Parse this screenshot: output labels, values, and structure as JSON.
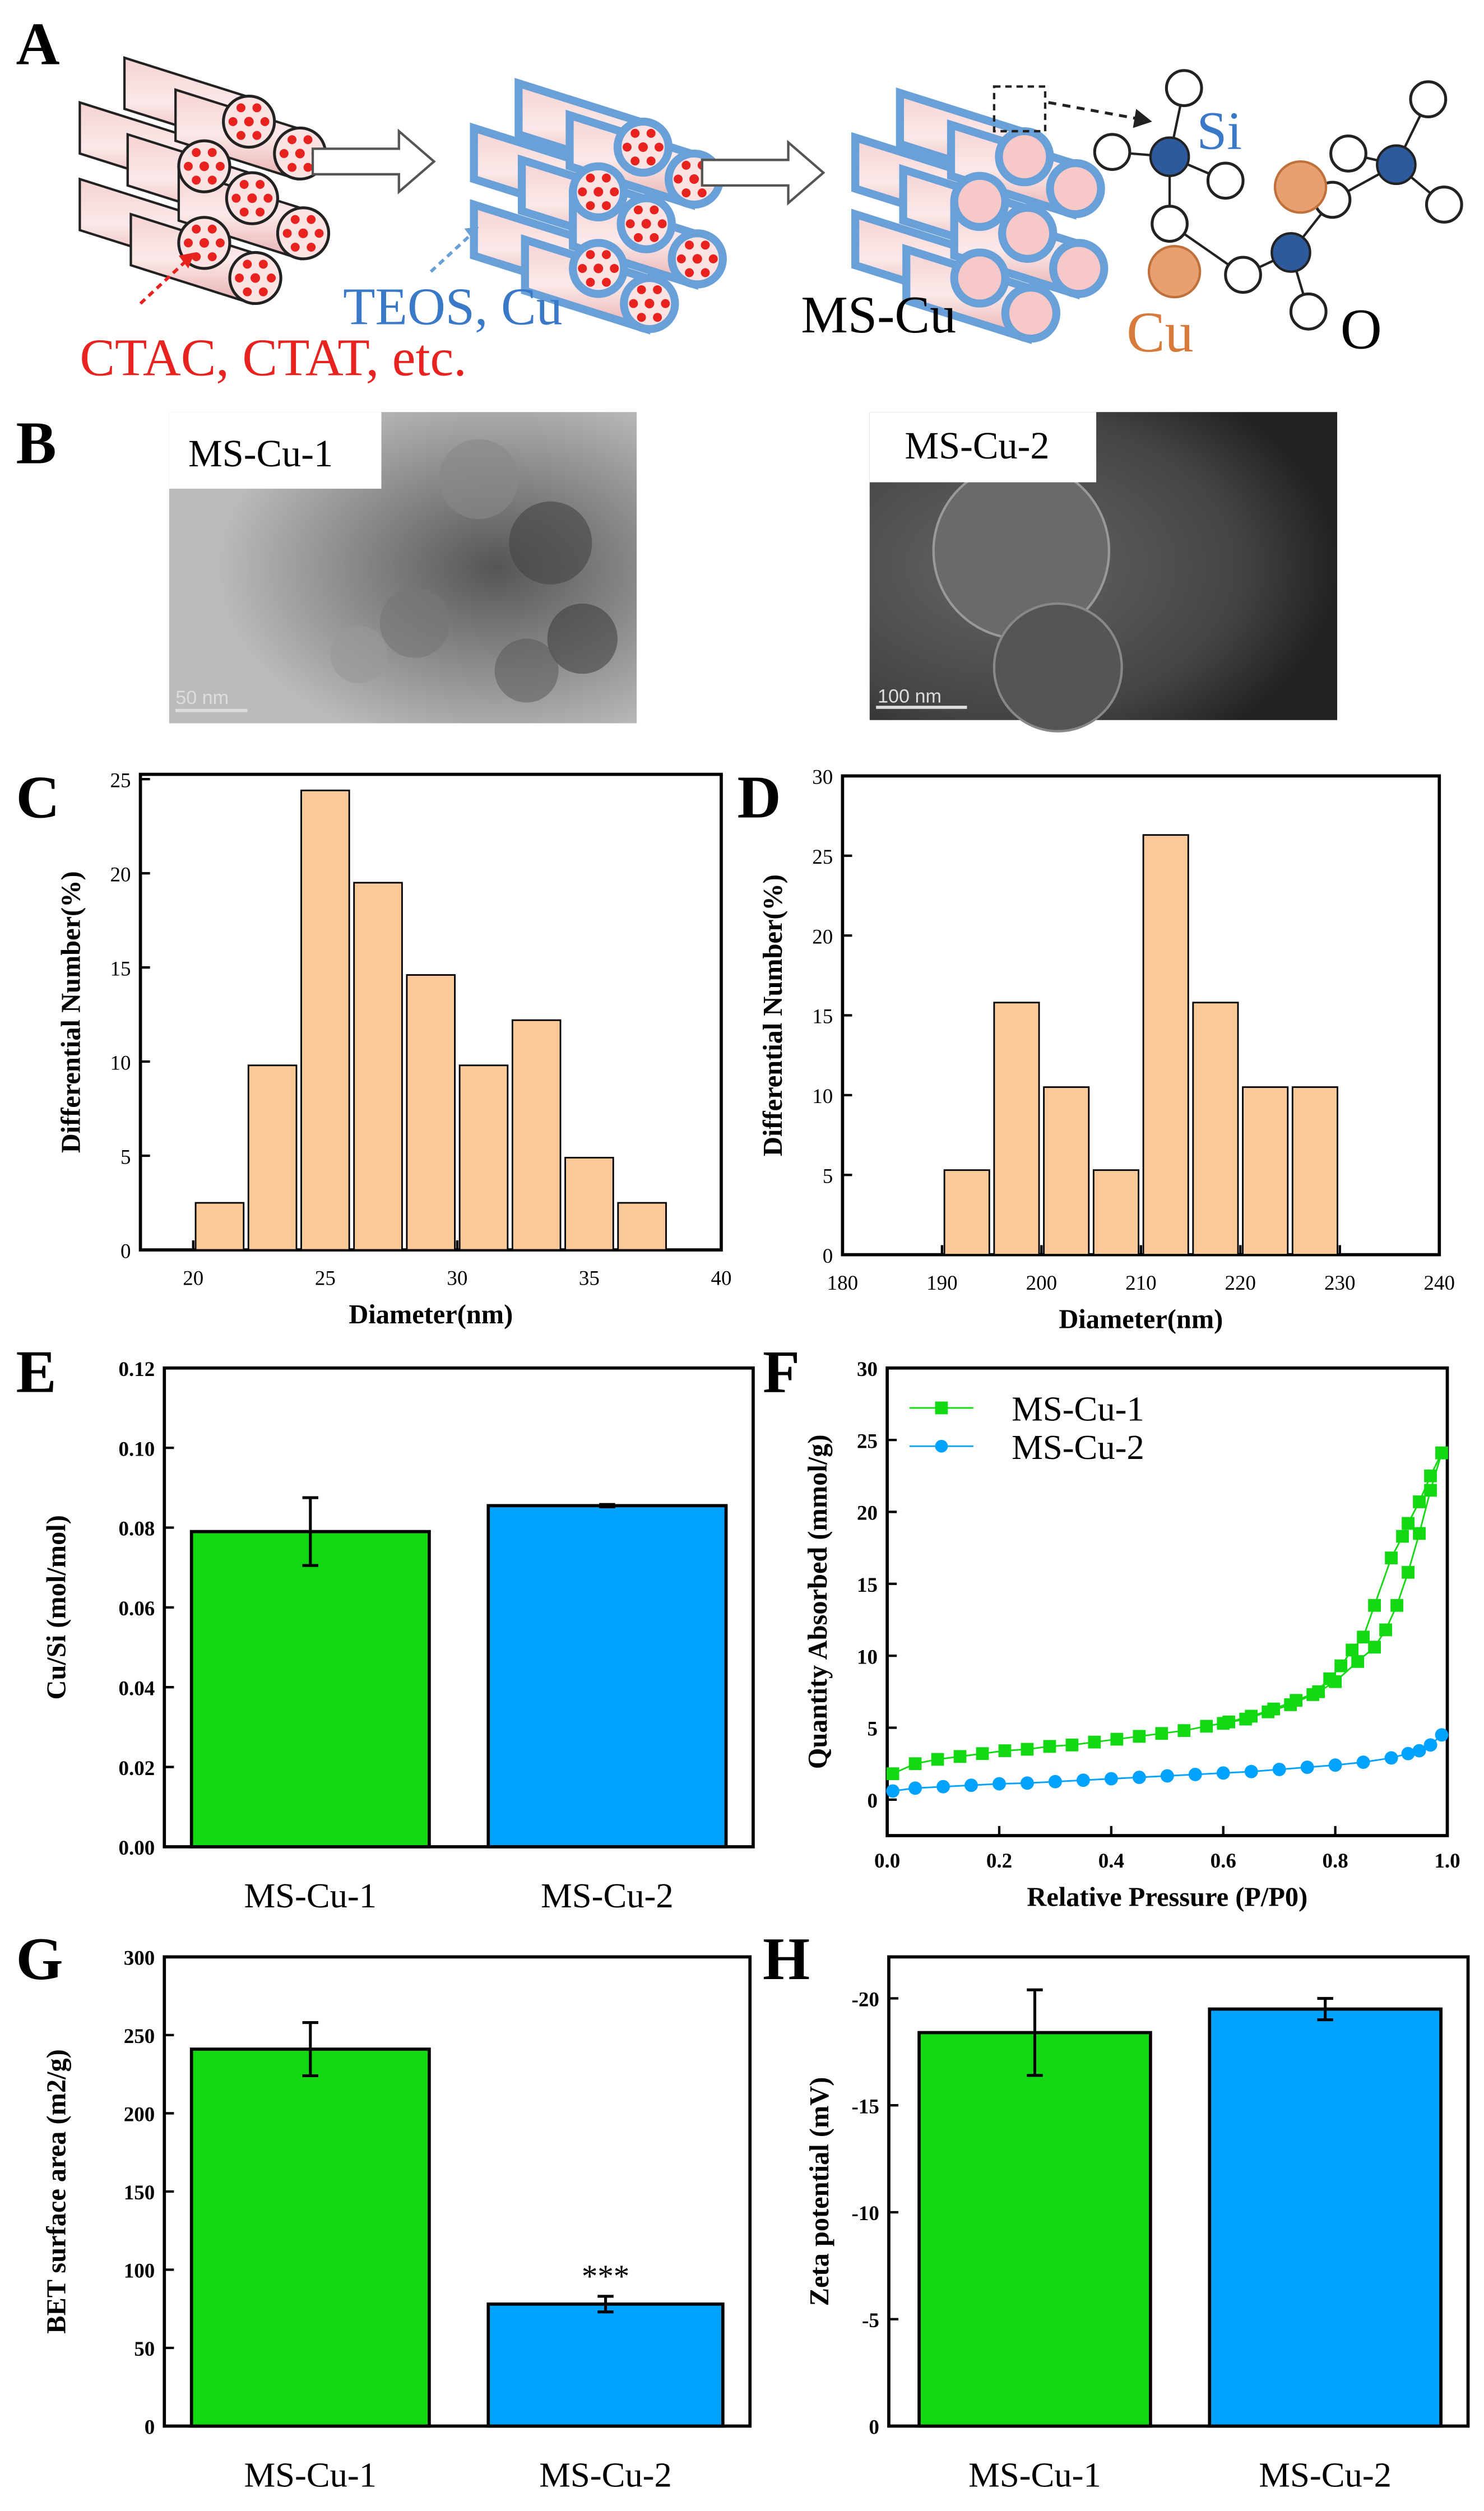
{
  "panel_letters": {
    "A": "A",
    "B": "B",
    "C": "C",
    "D": "D",
    "E": "E",
    "F": "F",
    "G": "G",
    "H": "H"
  },
  "schematic": {
    "surfactant_label": "CTAC, CTAT, etc.",
    "precursor_label": "TEOS, Cu",
    "product_label": "MS-Cu",
    "si_label": "Si",
    "cu_label": "Cu",
    "o_label": "O",
    "colors": {
      "surfactant": "#e8231f",
      "precursor": "#3a78c8",
      "si": "#2d5a9c",
      "cu": "#e8a070"
    }
  },
  "tem": [
    {
      "label": "MS-Cu-1",
      "scale": "50 nm"
    },
    {
      "label": "MS-Cu-2",
      "scale": "100 nm"
    }
  ],
  "colors": {
    "green": "#13d913",
    "blue": "#00a2ff",
    "hist": "#f9c99a"
  },
  "chart_data": [
    {
      "id": "C",
      "type": "bar",
      "xlabel": "Diameter(nm)",
      "ylabel": "Differential Number(%)",
      "xlim": [
        18,
        40
      ],
      "ylim": [
        0,
        25
      ],
      "xticks": [
        20,
        25,
        30,
        35,
        40
      ],
      "yticks": [
        0,
        5,
        10,
        15,
        20,
        25
      ],
      "bin_width": 2,
      "x": [
        21,
        23,
        25,
        27,
        29,
        31,
        33,
        35,
        37
      ],
      "values": [
        2.5,
        9.8,
        24.4,
        19.5,
        14.6,
        9.8,
        12.2,
        4.9,
        2.5
      ]
    },
    {
      "id": "D",
      "type": "bar",
      "xlabel": "Diameter(nm)",
      "ylabel": "Differential Number(%)",
      "xlim": [
        180,
        240
      ],
      "ylim": [
        0,
        30
      ],
      "xticks": [
        180,
        190,
        200,
        210,
        220,
        230,
        240
      ],
      "yticks": [
        0,
        5,
        10,
        15,
        20,
        25,
        30
      ],
      "bin_width": 5,
      "x": [
        192.5,
        197.5,
        202.5,
        207.5,
        212.5,
        217.5,
        222.5,
        227.5
      ],
      "values": [
        5.3,
        15.8,
        10.5,
        5.3,
        26.3,
        15.8,
        10.5,
        10.5
      ]
    },
    {
      "id": "E",
      "type": "bar",
      "ylabel": "Cu/Si (mol/mol)",
      "ylim": [
        0,
        0.12
      ],
      "yticks": [
        "0.00",
        "0.02",
        "0.04",
        "0.06",
        "0.08",
        "0.10",
        "0.12"
      ],
      "categories": [
        "MS-Cu-1",
        "MS-Cu-2"
      ],
      "values": [
        0.079,
        0.0855
      ],
      "errors": [
        0.0085,
        0.0003
      ]
    },
    {
      "id": "F",
      "type": "line",
      "xlabel": "Relative Pressure (P/P0)",
      "ylabel": "Quantity Absorbed (mmol/g)",
      "xlim": [
        0,
        1
      ],
      "ylim": [
        -2.5,
        30
      ],
      "xticks": [
        "0.0",
        "0.2",
        "0.4",
        "0.6",
        "0.8",
        "1.0"
      ],
      "yticks": [
        0,
        5,
        10,
        15,
        20,
        25,
        30
      ],
      "legend": "top-left",
      "series": [
        {
          "name": "MS-Cu-1",
          "marker": "square",
          "adsorption": [
            [
              0.01,
              1.8
            ],
            [
              0.05,
              2.5
            ],
            [
              0.09,
              2.8
            ],
            [
              0.13,
              3.0
            ],
            [
              0.17,
              3.2
            ],
            [
              0.21,
              3.4
            ],
            [
              0.25,
              3.5
            ],
            [
              0.29,
              3.7
            ],
            [
              0.33,
              3.8
            ],
            [
              0.37,
              4.0
            ],
            [
              0.41,
              4.2
            ],
            [
              0.45,
              4.4
            ],
            [
              0.49,
              4.6
            ],
            [
              0.53,
              4.8
            ],
            [
              0.57,
              5.1
            ],
            [
              0.61,
              5.4
            ],
            [
              0.65,
              5.8
            ],
            [
              0.69,
              6.3
            ],
            [
              0.73,
              6.9
            ],
            [
              0.77,
              7.5
            ],
            [
              0.8,
              8.2
            ],
            [
              0.84,
              9.6
            ],
            [
              0.87,
              10.6
            ],
            [
              0.89,
              11.8
            ],
            [
              0.91,
              13.5
            ],
            [
              0.93,
              15.8
            ],
            [
              0.95,
              18.5
            ],
            [
              0.97,
              21.5
            ],
            [
              0.99,
              24.1
            ]
          ],
          "desorption": [
            [
              0.99,
              24.1
            ],
            [
              0.97,
              22.5
            ],
            [
              0.95,
              20.7
            ],
            [
              0.93,
              19.2
            ],
            [
              0.92,
              18.3
            ],
            [
              0.9,
              16.8
            ],
            [
              0.87,
              13.5
            ],
            [
              0.85,
              11.3
            ],
            [
              0.83,
              10.4
            ],
            [
              0.81,
              9.3
            ],
            [
              0.79,
              8.4
            ],
            [
              0.76,
              7.3
            ],
            [
              0.72,
              6.6
            ],
            [
              0.68,
              6.1
            ],
            [
              0.64,
              5.6
            ],
            [
              0.6,
              5.3
            ]
          ]
        },
        {
          "name": "MS-Cu-2",
          "marker": "circle",
          "adsorption": [
            [
              0.01,
              0.6
            ],
            [
              0.05,
              0.8
            ],
            [
              0.1,
              0.9
            ],
            [
              0.15,
              1.0
            ],
            [
              0.2,
              1.1
            ],
            [
              0.25,
              1.15
            ],
            [
              0.3,
              1.25
            ],
            [
              0.35,
              1.35
            ],
            [
              0.4,
              1.45
            ],
            [
              0.45,
              1.55
            ],
            [
              0.5,
              1.65
            ],
            [
              0.55,
              1.75
            ],
            [
              0.6,
              1.85
            ],
            [
              0.65,
              1.95
            ],
            [
              0.7,
              2.1
            ],
            [
              0.75,
              2.25
            ],
            [
              0.8,
              2.4
            ],
            [
              0.85,
              2.6
            ],
            [
              0.9,
              2.9
            ],
            [
              0.93,
              3.2
            ],
            [
              0.95,
              3.4
            ],
            [
              0.97,
              3.8
            ],
            [
              0.99,
              4.5
            ]
          ],
          "desorption": []
        }
      ]
    },
    {
      "id": "G",
      "type": "bar",
      "ylabel": "BET surface area (m2/g)",
      "ylim": [
        0,
        300
      ],
      "yticks": [
        0,
        50,
        100,
        150,
        200,
        250,
        300
      ],
      "categories": [
        "MS-Cu-1",
        "MS-Cu-2"
      ],
      "values": [
        241,
        78
      ],
      "errors": [
        17,
        5
      ],
      "annotations": [
        "",
        "***"
      ]
    },
    {
      "id": "H",
      "type": "bar",
      "ylabel": "Zeta potential (mV)",
      "ylim": [
        0,
        -21
      ],
      "yticks": [
        0,
        -5,
        -10,
        -15,
        -20
      ],
      "categories": [
        "MS-Cu-1",
        "MS-Cu-2"
      ],
      "values": [
        -18.4,
        -19.5
      ],
      "errors": [
        2.0,
        0.5
      ]
    }
  ]
}
